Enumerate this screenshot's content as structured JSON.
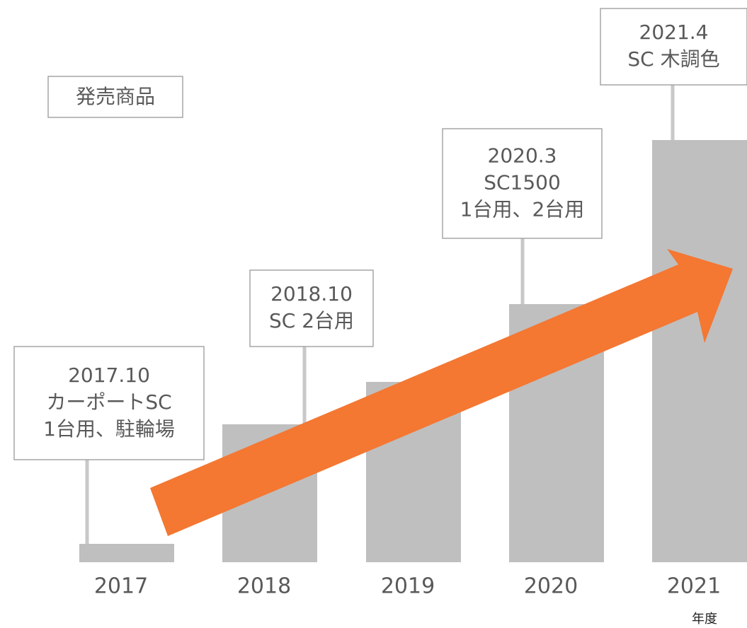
{
  "chart_data": {
    "type": "bar",
    "title": "発売商品",
    "x_label": "年度",
    "categories": [
      "2017",
      "2018",
      "2019",
      "2020",
      "2021"
    ],
    "values": [
      26,
      195,
      255,
      365,
      597
    ],
    "color": "#bfbfbf",
    "ylim": [
      0,
      600
    ],
    "annotations": [
      {
        "lines": [
          "2017.10",
          "カーポートSC",
          "1台用、駐輪場"
        ]
      },
      {
        "lines": [
          "2018.10",
          "SC 2台用"
        ]
      },
      {
        "lines": [
          "2020.3",
          "SC1500",
          "1台用、2台用"
        ]
      },
      {
        "lines": [
          "2021.4",
          "SC 木調色"
        ]
      }
    ]
  }
}
